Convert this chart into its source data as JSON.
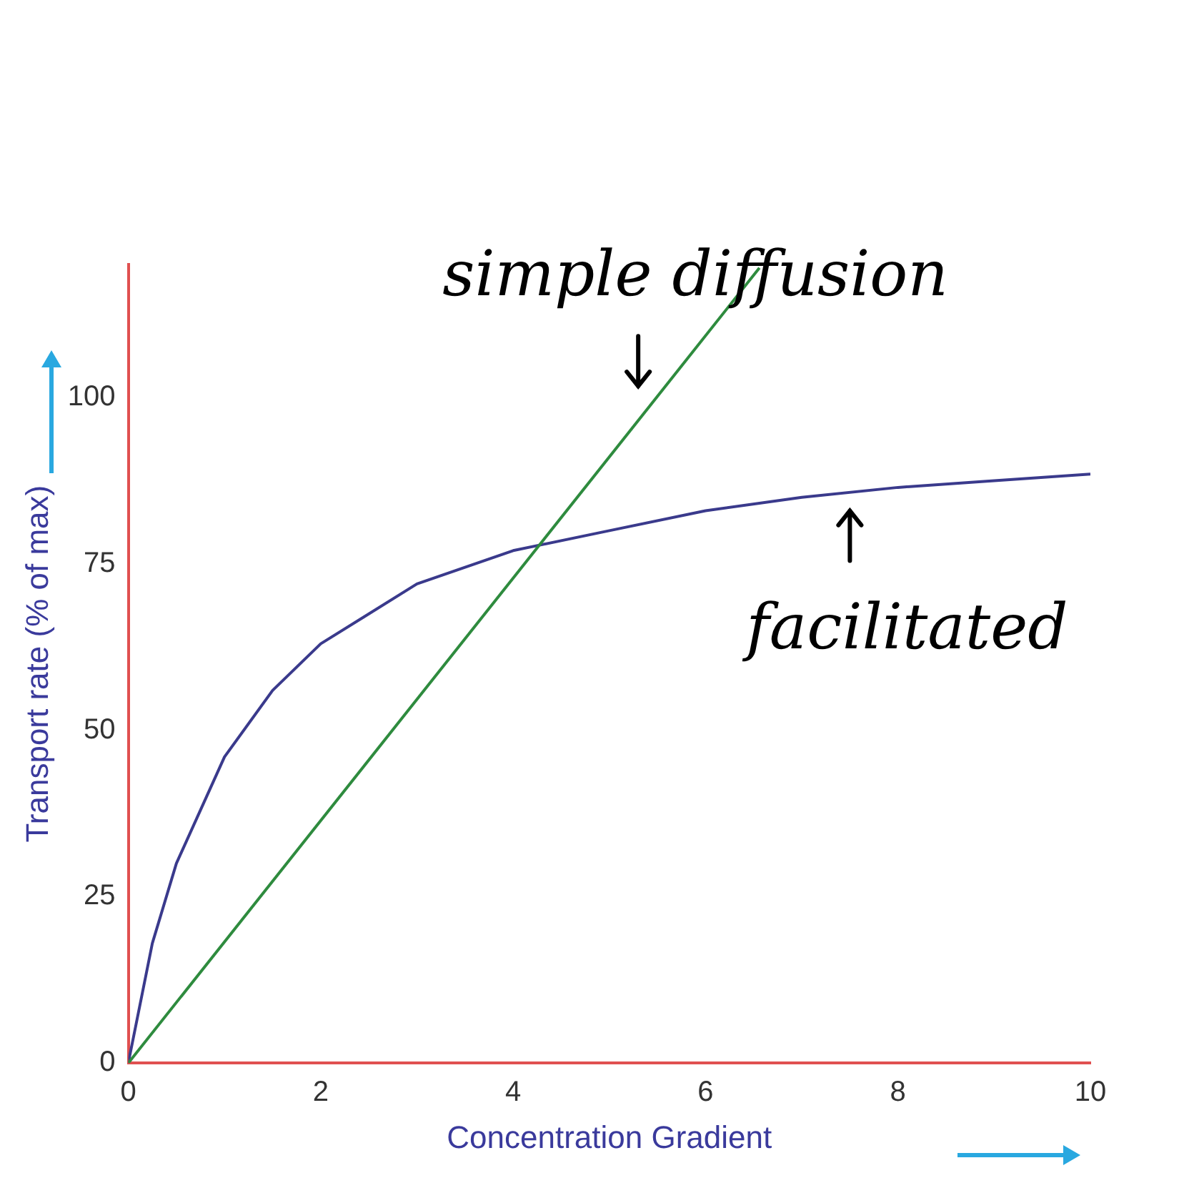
{
  "chart_data": {
    "type": "line",
    "xlabel": "Concentration Gradient",
    "ylabel": "Transport rate (% of max)",
    "xlim": [
      0,
      10
    ],
    "xticks": [
      0,
      2,
      4,
      6,
      8,
      10
    ],
    "ylim": [
      0,
      120
    ],
    "yticks": [
      0,
      25,
      50,
      75,
      100
    ],
    "grid": false,
    "legend": false,
    "marker": "none",
    "line_style": "solid",
    "series": [
      {
        "color": "#2e8b3e",
        "x": [
          0,
          6.56
        ],
        "values": [
          0,
          119.5
        ]
      },
      {
        "color": "#3a3a8c",
        "x": [
          0,
          0.25,
          0.5,
          1,
          1.5,
          2,
          3,
          4,
          5,
          6,
          7,
          8,
          9,
          10
        ],
        "values": [
          0,
          18,
          30,
          46,
          56,
          63,
          72,
          77,
          80,
          83,
          85,
          86.5,
          87.5,
          88.5
        ]
      }
    ],
    "annotations": [
      {
        "text": "simple diffusion",
        "x": 5.3,
        "y": 97
      },
      {
        "text": "facilitated",
        "x": 7.5,
        "y": 86
      }
    ]
  }
}
